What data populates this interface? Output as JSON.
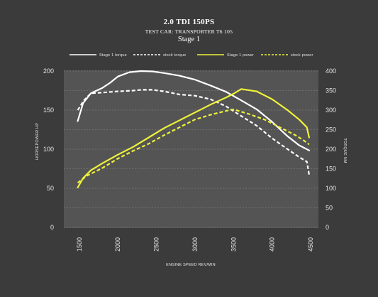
{
  "chart_data": {
    "type": "line",
    "title": "2.0 TDI 150PS",
    "subtitle": "TEST CAR: TRANSPORTER T6 105",
    "stage": "Stage 1",
    "xlabel": "ENGINE SPEED REV/MIN",
    "ylabel_left": "HORSEPOWER HP",
    "ylabel_right": "TORQUE NM",
    "xlim": [
      1300,
      4600
    ],
    "ylim_left": [
      0,
      200
    ],
    "ylim_right": [
      0,
      400
    ],
    "x_ticks": [
      "1500",
      "2000",
      "2500",
      "3000",
      "3500",
      "4000",
      "4500"
    ],
    "y_ticks_left": [
      "0",
      "50",
      "100",
      "150",
      "200"
    ],
    "y_ticks_right": [
      "0",
      "50",
      "100",
      "150",
      "200",
      "250",
      "300",
      "350",
      "400"
    ],
    "legend_position": "top",
    "grid": true,
    "series": [
      {
        "name": "Stage 1 torque",
        "axis": "right",
        "color": "#ffffff",
        "dash": false,
        "points": [
          [
            1480,
            272
          ],
          [
            1550,
            318
          ],
          [
            1650,
            343
          ],
          [
            1800,
            357
          ],
          [
            1900,
            370
          ],
          [
            2000,
            386
          ],
          [
            2150,
            397
          ],
          [
            2300,
            400
          ],
          [
            2450,
            399
          ],
          [
            2600,
            395
          ],
          [
            2800,
            388
          ],
          [
            3000,
            378
          ],
          [
            3200,
            363
          ],
          [
            3400,
            347
          ],
          [
            3600,
            325
          ],
          [
            3800,
            302
          ],
          [
            4000,
            270
          ],
          [
            4200,
            233
          ],
          [
            4350,
            210
          ],
          [
            4480,
            197
          ]
        ]
      },
      {
        "name": "stock torque",
        "axis": "right",
        "color": "#ffffff",
        "dash": true,
        "points": [
          [
            1480,
            300
          ],
          [
            1560,
            325
          ],
          [
            1650,
            343
          ],
          [
            1800,
            345
          ],
          [
            2000,
            348
          ],
          [
            2200,
            350
          ],
          [
            2300,
            352
          ],
          [
            2450,
            352
          ],
          [
            2600,
            348
          ],
          [
            2800,
            340
          ],
          [
            3000,
            337
          ],
          [
            3200,
            328
          ],
          [
            3400,
            310
          ],
          [
            3600,
            285
          ],
          [
            3800,
            260
          ],
          [
            4000,
            228
          ],
          [
            4200,
            200
          ],
          [
            4350,
            180
          ],
          [
            4450,
            168
          ],
          [
            4480,
            135
          ]
        ]
      },
      {
        "name": "Stage 1 power",
        "axis": "left",
        "color": "#eef23a",
        "dash": false,
        "points": [
          [
            1480,
            51
          ],
          [
            1550,
            63
          ],
          [
            1650,
            73
          ],
          [
            1800,
            82
          ],
          [
            2000,
            93
          ],
          [
            2200,
            103
          ],
          [
            2400,
            115
          ],
          [
            2600,
            127
          ],
          [
            2800,
            137
          ],
          [
            3000,
            147
          ],
          [
            3200,
            157
          ],
          [
            3400,
            166
          ],
          [
            3500,
            171
          ],
          [
            3600,
            177
          ],
          [
            3800,
            174
          ],
          [
            4000,
            164
          ],
          [
            4200,
            150
          ],
          [
            4350,
            138
          ],
          [
            4450,
            128
          ],
          [
            4480,
            115
          ]
        ]
      },
      {
        "name": "stock power",
        "axis": "left",
        "color": "#eef23a",
        "dash": true,
        "points": [
          [
            1480,
            57
          ],
          [
            1600,
            66
          ],
          [
            1800,
            76
          ],
          [
            2000,
            88
          ],
          [
            2200,
            98
          ],
          [
            2400,
            107
          ],
          [
            2600,
            118
          ],
          [
            2800,
            128
          ],
          [
            3000,
            138
          ],
          [
            3200,
            144
          ],
          [
            3400,
            149
          ],
          [
            3500,
            151
          ],
          [
            3700,
            145
          ],
          [
            3900,
            138
          ],
          [
            4100,
            128
          ],
          [
            4300,
            118
          ],
          [
            4400,
            112
          ],
          [
            4480,
            106
          ]
        ]
      }
    ]
  }
}
